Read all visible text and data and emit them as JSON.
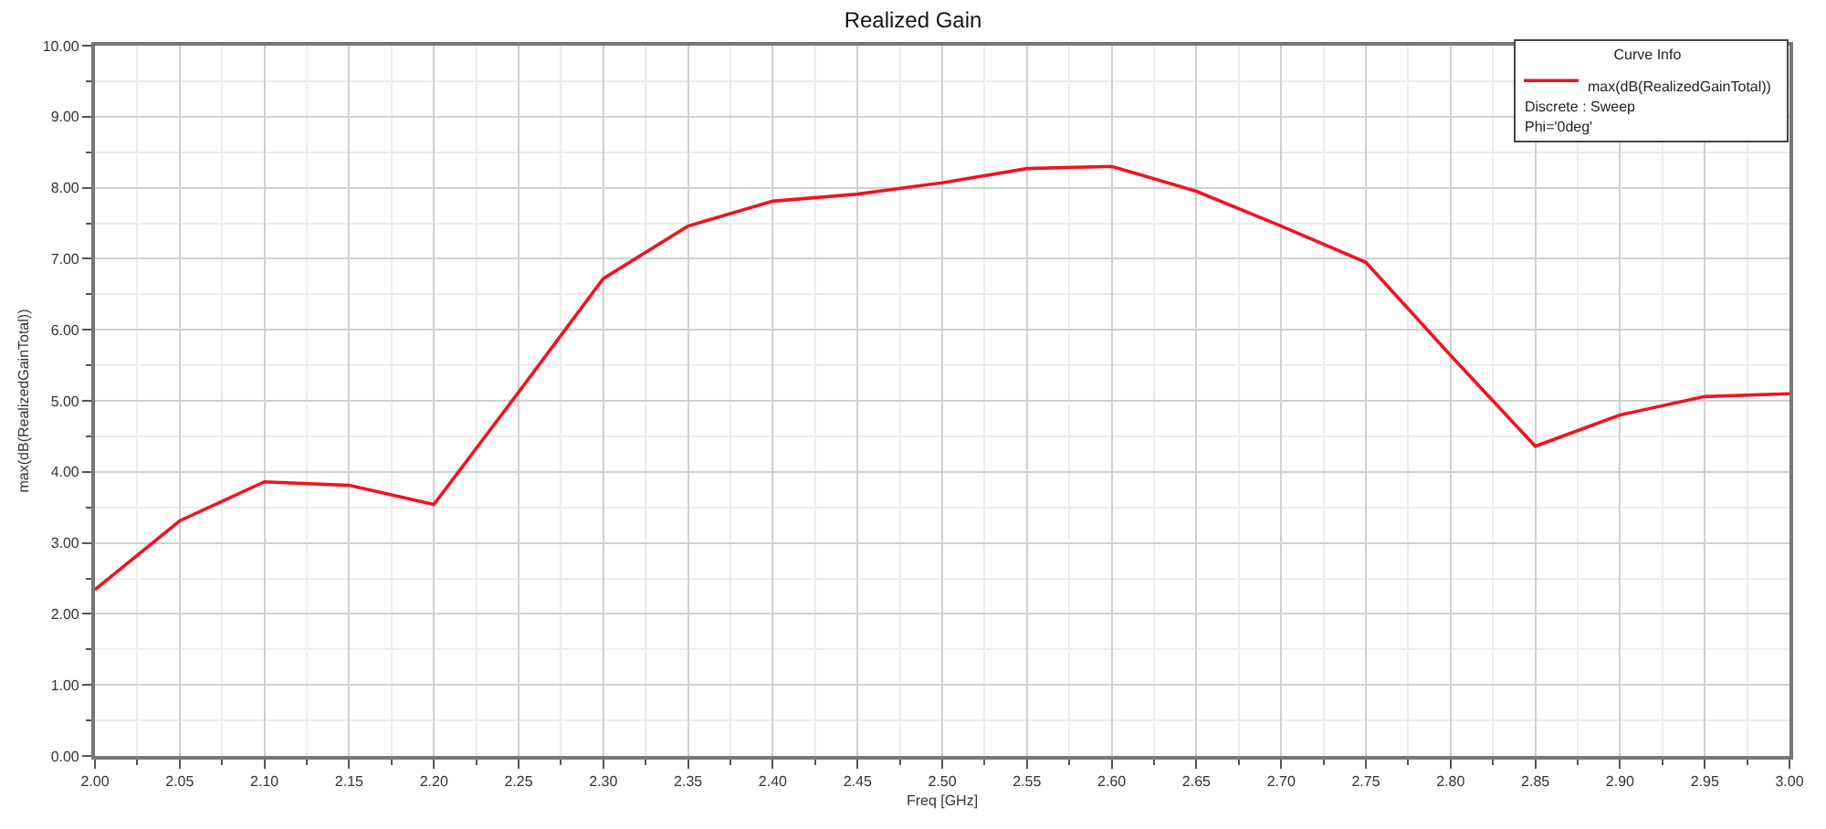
{
  "chart_data": {
    "type": "line",
    "title": "Realized Gain",
    "xlabel": "Freq [GHz]",
    "ylabel": "max(dB(RealizedGainTotal))",
    "legend_title": "Curve Info",
    "x": [
      2.0,
      2.05,
      2.1,
      2.15,
      2.2,
      2.25,
      2.3,
      2.35,
      2.4,
      2.45,
      2.5,
      2.55,
      2.6,
      2.65,
      2.7,
      2.75,
      2.8,
      2.85,
      2.9,
      2.95,
      3.0
    ],
    "series": [
      {
        "name": "max(dB(RealizedGainTotal))",
        "color": "#f0141e",
        "values": [
          2.34,
          3.31,
          3.86,
          3.81,
          3.54,
          5.12,
          6.72,
          7.46,
          7.81,
          7.91,
          8.07,
          8.27,
          8.3,
          7.95,
          7.46,
          6.95,
          5.64,
          4.36,
          4.8,
          5.06,
          5.1
        ]
      }
    ],
    "annotations": [
      "Discrete : Sweep",
      "Phi='0deg'"
    ],
    "xlim": [
      2.0,
      3.0
    ],
    "xticks": [
      {
        "value": 2.0,
        "label": "2.00"
      },
      {
        "value": 2.05,
        "label": "2.05"
      },
      {
        "value": 2.1,
        "label": "2.10"
      },
      {
        "value": 2.15,
        "label": "2.15"
      },
      {
        "value": 2.2,
        "label": "2.20"
      },
      {
        "value": 2.25,
        "label": "2.25"
      },
      {
        "value": 2.3,
        "label": "2.30"
      },
      {
        "value": 2.35,
        "label": "2.35"
      },
      {
        "value": 2.4,
        "label": "2.40"
      },
      {
        "value": 2.45,
        "label": "2.45"
      },
      {
        "value": 2.5,
        "label": "2.50"
      },
      {
        "value": 2.55,
        "label": "2.55"
      },
      {
        "value": 2.6,
        "label": "2.60"
      },
      {
        "value": 2.65,
        "label": "2.65"
      },
      {
        "value": 2.7,
        "label": "2.70"
      },
      {
        "value": 2.75,
        "label": "2.75"
      },
      {
        "value": 2.8,
        "label": "2.80"
      },
      {
        "value": 2.85,
        "label": "2.85"
      },
      {
        "value": 2.9,
        "label": "2.90"
      },
      {
        "value": 2.95,
        "label": "2.95"
      },
      {
        "value": 3.0,
        "label": "3.00"
      }
    ],
    "ylim": [
      0,
      10
    ],
    "yticks": [
      {
        "value": 0,
        "label": "0.00"
      },
      {
        "value": 1,
        "label": "1.00"
      },
      {
        "value": 2,
        "label": "2.00"
      },
      {
        "value": 3,
        "label": "3.00"
      },
      {
        "value": 4,
        "label": "4.00"
      },
      {
        "value": 5,
        "label": "5.00"
      },
      {
        "value": 6,
        "label": "6.00"
      },
      {
        "value": 7,
        "label": "7.00"
      },
      {
        "value": 8,
        "label": "8.00"
      },
      {
        "value": 9,
        "label": "9.00"
      },
      {
        "value": 10,
        "label": "10.00"
      }
    ],
    "grid": true,
    "legend": "top right",
    "marker": "none",
    "line_style": "solid"
  }
}
